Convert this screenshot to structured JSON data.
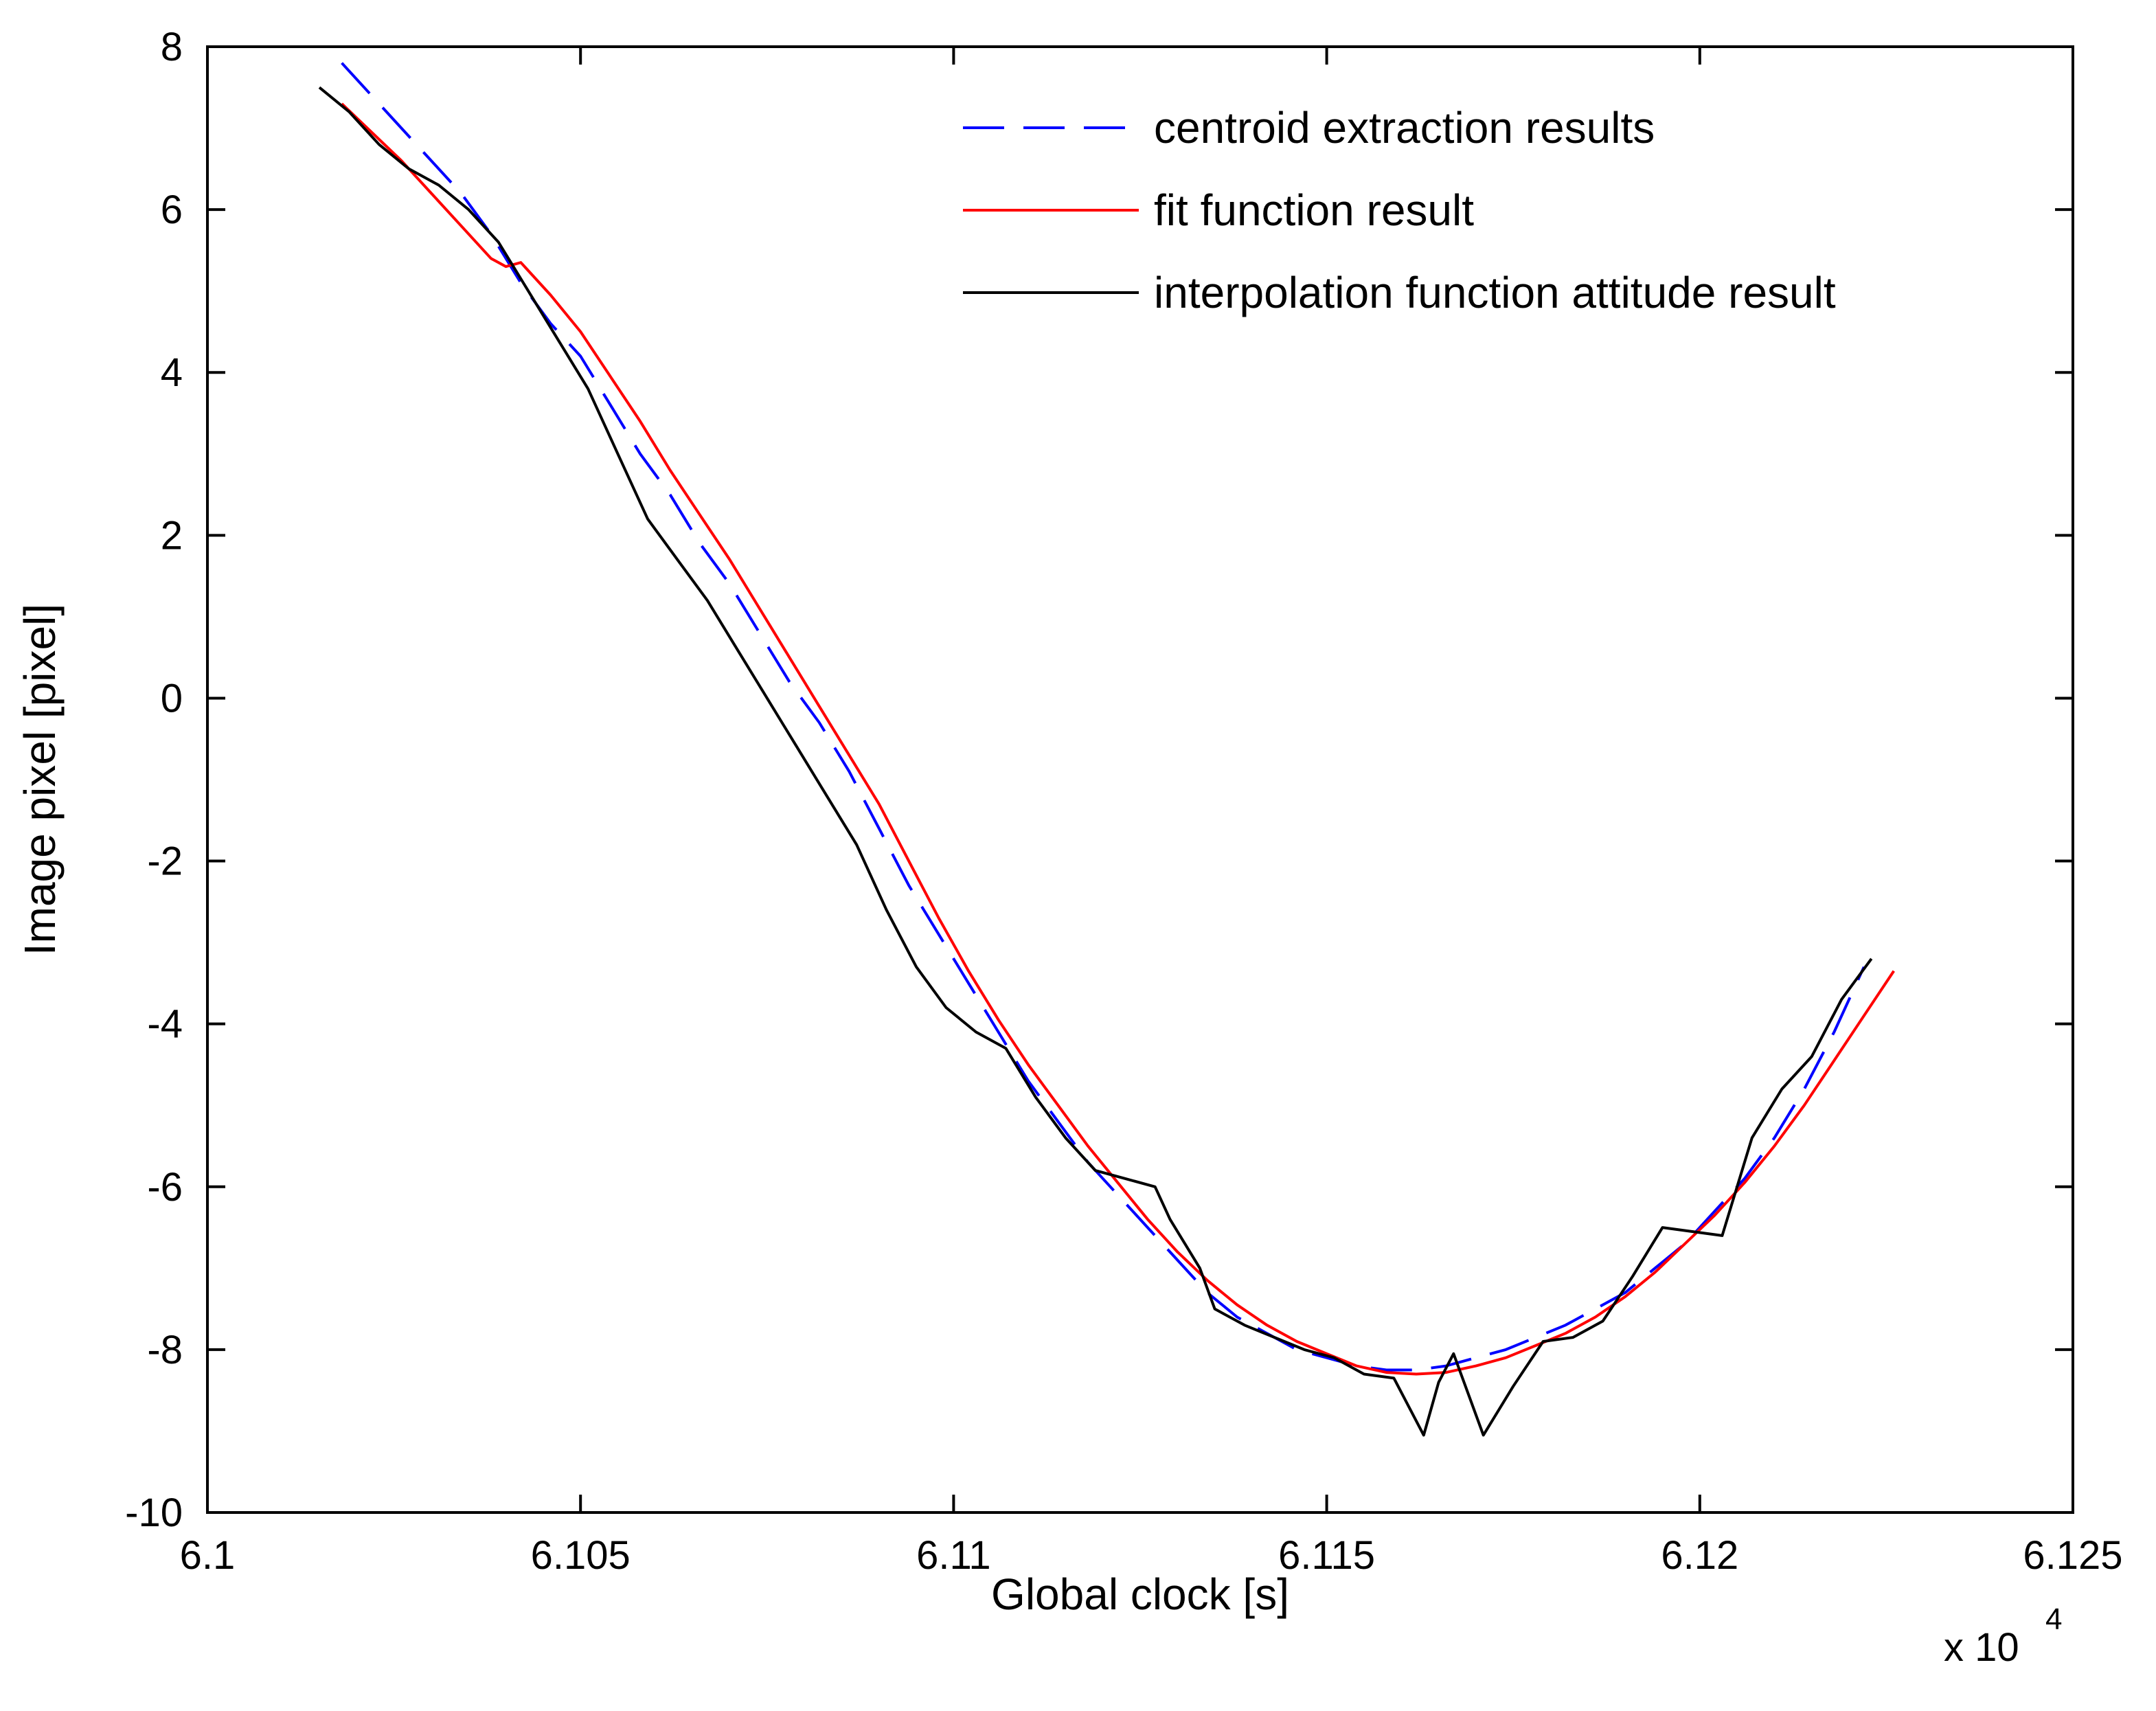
{
  "chart_data": {
    "type": "line",
    "title": "",
    "xlabel": "Global clock [s]",
    "ylabel": "Image pixel [pixel]",
    "x_multiplier_label": "x 10",
    "x_multiplier_exp": "4",
    "xlim": [
      6.1,
      6.125
    ],
    "ylim": [
      -10,
      8
    ],
    "xticks": [
      6.1,
      6.105,
      6.11,
      6.115,
      6.12,
      6.125
    ],
    "xtick_labels": [
      "6.1",
      "6.105",
      "6.11",
      "6.115",
      "6.12",
      "6.125"
    ],
    "yticks": [
      8,
      6,
      4,
      2,
      0,
      -2,
      -4,
      -6,
      -8,
      -10
    ],
    "ytick_labels": [
      "8",
      "6",
      "4",
      "2",
      "0",
      "-2",
      "-4",
      "-6",
      "-8",
      "-10"
    ],
    "grid": false,
    "legend_position": "top-right",
    "series": [
      {
        "name": "centroid extraction results",
        "color": "#0000ff",
        "dash": "dashed",
        "x": [
          6.1018,
          6.1022,
          6.1026,
          6.103,
          6.1034,
          6.1038,
          6.1042,
          6.1046,
          6.105,
          6.1054,
          6.1058,
          6.1062,
          6.1066,
          6.107,
          6.1074,
          6.1078,
          6.1082,
          6.1086,
          6.109,
          6.1094,
          6.1098,
          6.1102,
          6.1106,
          6.111,
          6.1114,
          6.1118,
          6.1122,
          6.1126,
          6.113,
          6.1134,
          6.1138,
          6.1142,
          6.1146,
          6.115,
          6.1154,
          6.1158,
          6.1162,
          6.1166,
          6.117,
          6.1174,
          6.1178,
          6.1182,
          6.1186,
          6.119,
          6.1194,
          6.1198,
          6.1202,
          6.1206,
          6.121,
          6.1214,
          6.1218,
          6.1222
        ],
        "y": [
          7.8,
          7.4,
          7.0,
          6.6,
          6.2,
          5.7,
          5.1,
          4.6,
          4.2,
          3.6,
          3.0,
          2.5,
          1.9,
          1.4,
          0.8,
          0.2,
          -0.3,
          -0.9,
          -1.6,
          -2.3,
          -2.9,
          -3.5,
          -4.1,
          -4.7,
          -5.2,
          -5.7,
          -6.1,
          -6.5,
          -6.9,
          -7.3,
          -7.6,
          -7.8,
          -8.0,
          -8.1,
          -8.2,
          -8.25,
          -8.25,
          -8.2,
          -8.1,
          -8.0,
          -7.85,
          -7.7,
          -7.5,
          -7.3,
          -7.0,
          -6.7,
          -6.3,
          -5.9,
          -5.4,
          -4.8,
          -4.1,
          -3.3
        ]
      },
      {
        "name": "fit function result",
        "color": "#ff0000",
        "dash": "solid",
        "x": [
          6.1018,
          6.1022,
          6.1026,
          6.103,
          6.1034,
          6.1038,
          6.104,
          6.1042,
          6.1046,
          6.105,
          6.1054,
          6.1058,
          6.1062,
          6.1066,
          6.107,
          6.1074,
          6.1078,
          6.1082,
          6.1086,
          6.109,
          6.1094,
          6.1098,
          6.1102,
          6.1106,
          6.111,
          6.1114,
          6.1118,
          6.1122,
          6.1126,
          6.113,
          6.1134,
          6.1138,
          6.1142,
          6.1146,
          6.115,
          6.1154,
          6.1158,
          6.1162,
          6.1166,
          6.117,
          6.1174,
          6.1178,
          6.1182,
          6.1186,
          6.119,
          6.1194,
          6.1198,
          6.1202,
          6.1206,
          6.121,
          6.1214,
          6.1218,
          6.1222,
          6.1226
        ],
        "y": [
          7.3,
          6.95,
          6.6,
          6.2,
          5.8,
          5.4,
          5.3,
          5.35,
          4.95,
          4.5,
          3.95,
          3.4,
          2.8,
          2.25,
          1.7,
          1.1,
          0.5,
          -0.1,
          -0.7,
          -1.3,
          -2.0,
          -2.7,
          -3.35,
          -3.95,
          -4.5,
          -5.0,
          -5.5,
          -5.95,
          -6.4,
          -6.8,
          -7.15,
          -7.45,
          -7.7,
          -7.9,
          -8.05,
          -8.2,
          -8.28,
          -8.3,
          -8.28,
          -8.2,
          -8.1,
          -7.95,
          -7.8,
          -7.6,
          -7.35,
          -7.05,
          -6.7,
          -6.35,
          -5.95,
          -5.5,
          -5.0,
          -4.45,
          -3.9,
          -3.35
        ]
      },
      {
        "name": "interpolation function attitude result",
        "color": "#000000",
        "dash": "solid",
        "x": [
          6.1015,
          6.1019,
          6.1023,
          6.1027,
          6.1031,
          6.1035,
          6.1039,
          6.1043,
          6.1047,
          6.1051,
          6.1055,
          6.1059,
          6.1063,
          6.1067,
          6.1071,
          6.1075,
          6.1079,
          6.1083,
          6.1087,
          6.1091,
          6.1095,
          6.1099,
          6.1103,
          6.1107,
          6.1111,
          6.1115,
          6.1119,
          6.1123,
          6.1127,
          6.1129,
          6.1133,
          6.1135,
          6.1139,
          6.1143,
          6.1147,
          6.1151,
          6.1155,
          6.1159,
          6.1163,
          6.1165,
          6.1167,
          6.1171,
          6.1175,
          6.1179,
          6.1183,
          6.1187,
          6.1191,
          6.1195,
          6.1199,
          6.1203,
          6.1207,
          6.1211,
          6.1215,
          6.1219,
          6.1223
        ],
        "y": [
          7.5,
          7.2,
          6.8,
          6.5,
          6.3,
          6.0,
          5.6,
          5.0,
          4.4,
          3.8,
          3.0,
          2.2,
          1.7,
          1.2,
          0.6,
          0.0,
          -0.6,
          -1.2,
          -1.8,
          -2.6,
          -3.3,
          -3.8,
          -4.1,
          -4.3,
          -4.9,
          -5.4,
          -5.8,
          -5.9,
          -6.0,
          -6.4,
          -7.0,
          -7.5,
          -7.7,
          -7.85,
          -8.0,
          -8.1,
          -8.3,
          -8.35,
          -9.05,
          -8.4,
          -8.05,
          -9.05,
          -8.45,
          -7.9,
          -7.85,
          -7.65,
          -7.1,
          -6.5,
          -6.55,
          -6.6,
          -5.4,
          -4.8,
          -4.4,
          -3.7,
          -3.2
        ]
      }
    ]
  }
}
